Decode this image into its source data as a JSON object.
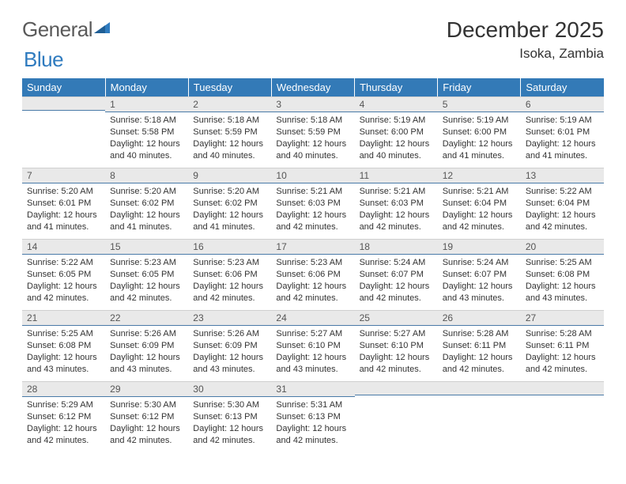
{
  "brand": {
    "word1": "General",
    "word2": "Blue"
  },
  "title": "December 2025",
  "location": "Isoka, Zambia",
  "theme": {
    "header_bg": "#337ab7",
    "header_fg": "#ffffff",
    "daynum_bg": "#e9e9e9",
    "daynum_border": "#4a7aa8",
    "text_color": "#333333",
    "logo_gray": "#5a5a5a",
    "logo_blue": "#2f7bbf"
  },
  "weekdays": [
    "Sunday",
    "Monday",
    "Tuesday",
    "Wednesday",
    "Thursday",
    "Friday",
    "Saturday"
  ],
  "start_offset": 1,
  "days": [
    {
      "n": 1,
      "sr": "5:18 AM",
      "ss": "5:58 PM",
      "dh": 12,
      "dm": 40
    },
    {
      "n": 2,
      "sr": "5:18 AM",
      "ss": "5:59 PM",
      "dh": 12,
      "dm": 40
    },
    {
      "n": 3,
      "sr": "5:18 AM",
      "ss": "5:59 PM",
      "dh": 12,
      "dm": 40
    },
    {
      "n": 4,
      "sr": "5:19 AM",
      "ss": "6:00 PM",
      "dh": 12,
      "dm": 40
    },
    {
      "n": 5,
      "sr": "5:19 AM",
      "ss": "6:00 PM",
      "dh": 12,
      "dm": 41
    },
    {
      "n": 6,
      "sr": "5:19 AM",
      "ss": "6:01 PM",
      "dh": 12,
      "dm": 41
    },
    {
      "n": 7,
      "sr": "5:20 AM",
      "ss": "6:01 PM",
      "dh": 12,
      "dm": 41
    },
    {
      "n": 8,
      "sr": "5:20 AM",
      "ss": "6:02 PM",
      "dh": 12,
      "dm": 41
    },
    {
      "n": 9,
      "sr": "5:20 AM",
      "ss": "6:02 PM",
      "dh": 12,
      "dm": 41
    },
    {
      "n": 10,
      "sr": "5:21 AM",
      "ss": "6:03 PM",
      "dh": 12,
      "dm": 42
    },
    {
      "n": 11,
      "sr": "5:21 AM",
      "ss": "6:03 PM",
      "dh": 12,
      "dm": 42
    },
    {
      "n": 12,
      "sr": "5:21 AM",
      "ss": "6:04 PM",
      "dh": 12,
      "dm": 42
    },
    {
      "n": 13,
      "sr": "5:22 AM",
      "ss": "6:04 PM",
      "dh": 12,
      "dm": 42
    },
    {
      "n": 14,
      "sr": "5:22 AM",
      "ss": "6:05 PM",
      "dh": 12,
      "dm": 42
    },
    {
      "n": 15,
      "sr": "5:23 AM",
      "ss": "6:05 PM",
      "dh": 12,
      "dm": 42
    },
    {
      "n": 16,
      "sr": "5:23 AM",
      "ss": "6:06 PM",
      "dh": 12,
      "dm": 42
    },
    {
      "n": 17,
      "sr": "5:23 AM",
      "ss": "6:06 PM",
      "dh": 12,
      "dm": 42
    },
    {
      "n": 18,
      "sr": "5:24 AM",
      "ss": "6:07 PM",
      "dh": 12,
      "dm": 42
    },
    {
      "n": 19,
      "sr": "5:24 AM",
      "ss": "6:07 PM",
      "dh": 12,
      "dm": 43
    },
    {
      "n": 20,
      "sr": "5:25 AM",
      "ss": "6:08 PM",
      "dh": 12,
      "dm": 43
    },
    {
      "n": 21,
      "sr": "5:25 AM",
      "ss": "6:08 PM",
      "dh": 12,
      "dm": 43
    },
    {
      "n": 22,
      "sr": "5:26 AM",
      "ss": "6:09 PM",
      "dh": 12,
      "dm": 43
    },
    {
      "n": 23,
      "sr": "5:26 AM",
      "ss": "6:09 PM",
      "dh": 12,
      "dm": 43
    },
    {
      "n": 24,
      "sr": "5:27 AM",
      "ss": "6:10 PM",
      "dh": 12,
      "dm": 43
    },
    {
      "n": 25,
      "sr": "5:27 AM",
      "ss": "6:10 PM",
      "dh": 12,
      "dm": 42
    },
    {
      "n": 26,
      "sr": "5:28 AM",
      "ss": "6:11 PM",
      "dh": 12,
      "dm": 42
    },
    {
      "n": 27,
      "sr": "5:28 AM",
      "ss": "6:11 PM",
      "dh": 12,
      "dm": 42
    },
    {
      "n": 28,
      "sr": "5:29 AM",
      "ss": "6:12 PM",
      "dh": 12,
      "dm": 42
    },
    {
      "n": 29,
      "sr": "5:30 AM",
      "ss": "6:12 PM",
      "dh": 12,
      "dm": 42
    },
    {
      "n": 30,
      "sr": "5:30 AM",
      "ss": "6:13 PM",
      "dh": 12,
      "dm": 42
    },
    {
      "n": 31,
      "sr": "5:31 AM",
      "ss": "6:13 PM",
      "dh": 12,
      "dm": 42
    }
  ],
  "labels": {
    "sunrise": "Sunrise:",
    "sunset": "Sunset:",
    "daylight": "Daylight:",
    "hours": "hours",
    "and": "and",
    "minutes": "minutes."
  }
}
